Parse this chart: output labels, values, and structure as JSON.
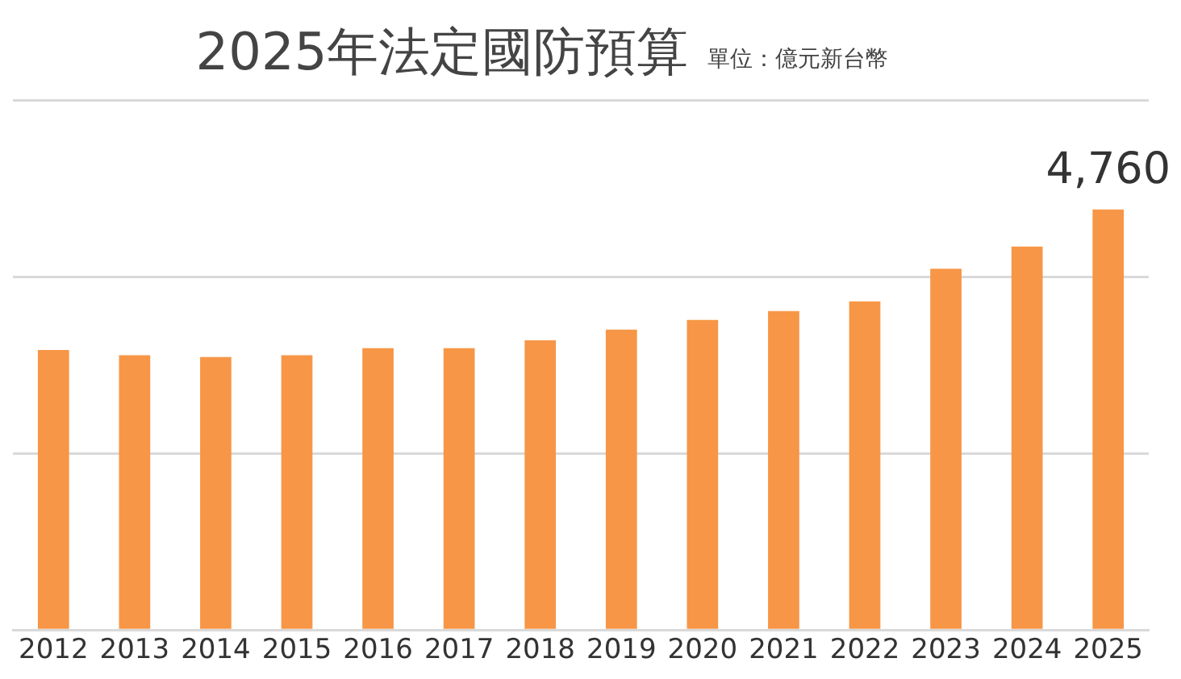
{
  "chart_data": {
    "type": "bar",
    "title": "2025年法定國防預算",
    "subtitle": "單位：億元新台幣",
    "categories": [
      "2012",
      "2013",
      "2014",
      "2015",
      "2016",
      "2017",
      "2018",
      "2019",
      "2020",
      "2021",
      "2022",
      "2023",
      "2024",
      "2025"
    ],
    "values": [
      3170,
      3110,
      3090,
      3110,
      3190,
      3190,
      3280,
      3400,
      3510,
      3610,
      3720,
      4090,
      4340,
      4760
    ],
    "value_labels": [
      null,
      null,
      null,
      null,
      null,
      null,
      null,
      null,
      null,
      null,
      null,
      null,
      null,
      "4,760"
    ],
    "color": "#f79646",
    "ylim": [
      0,
      6000
    ],
    "yticks": [
      {
        "value": 0,
        "label": null
      },
      {
        "value": 2000,
        "label": null
      },
      {
        "value": 4000,
        "label": null
      },
      {
        "value": 6000,
        "label": null
      }
    ],
    "grid": "y",
    "tick_labels": "x",
    "legend": false
  }
}
